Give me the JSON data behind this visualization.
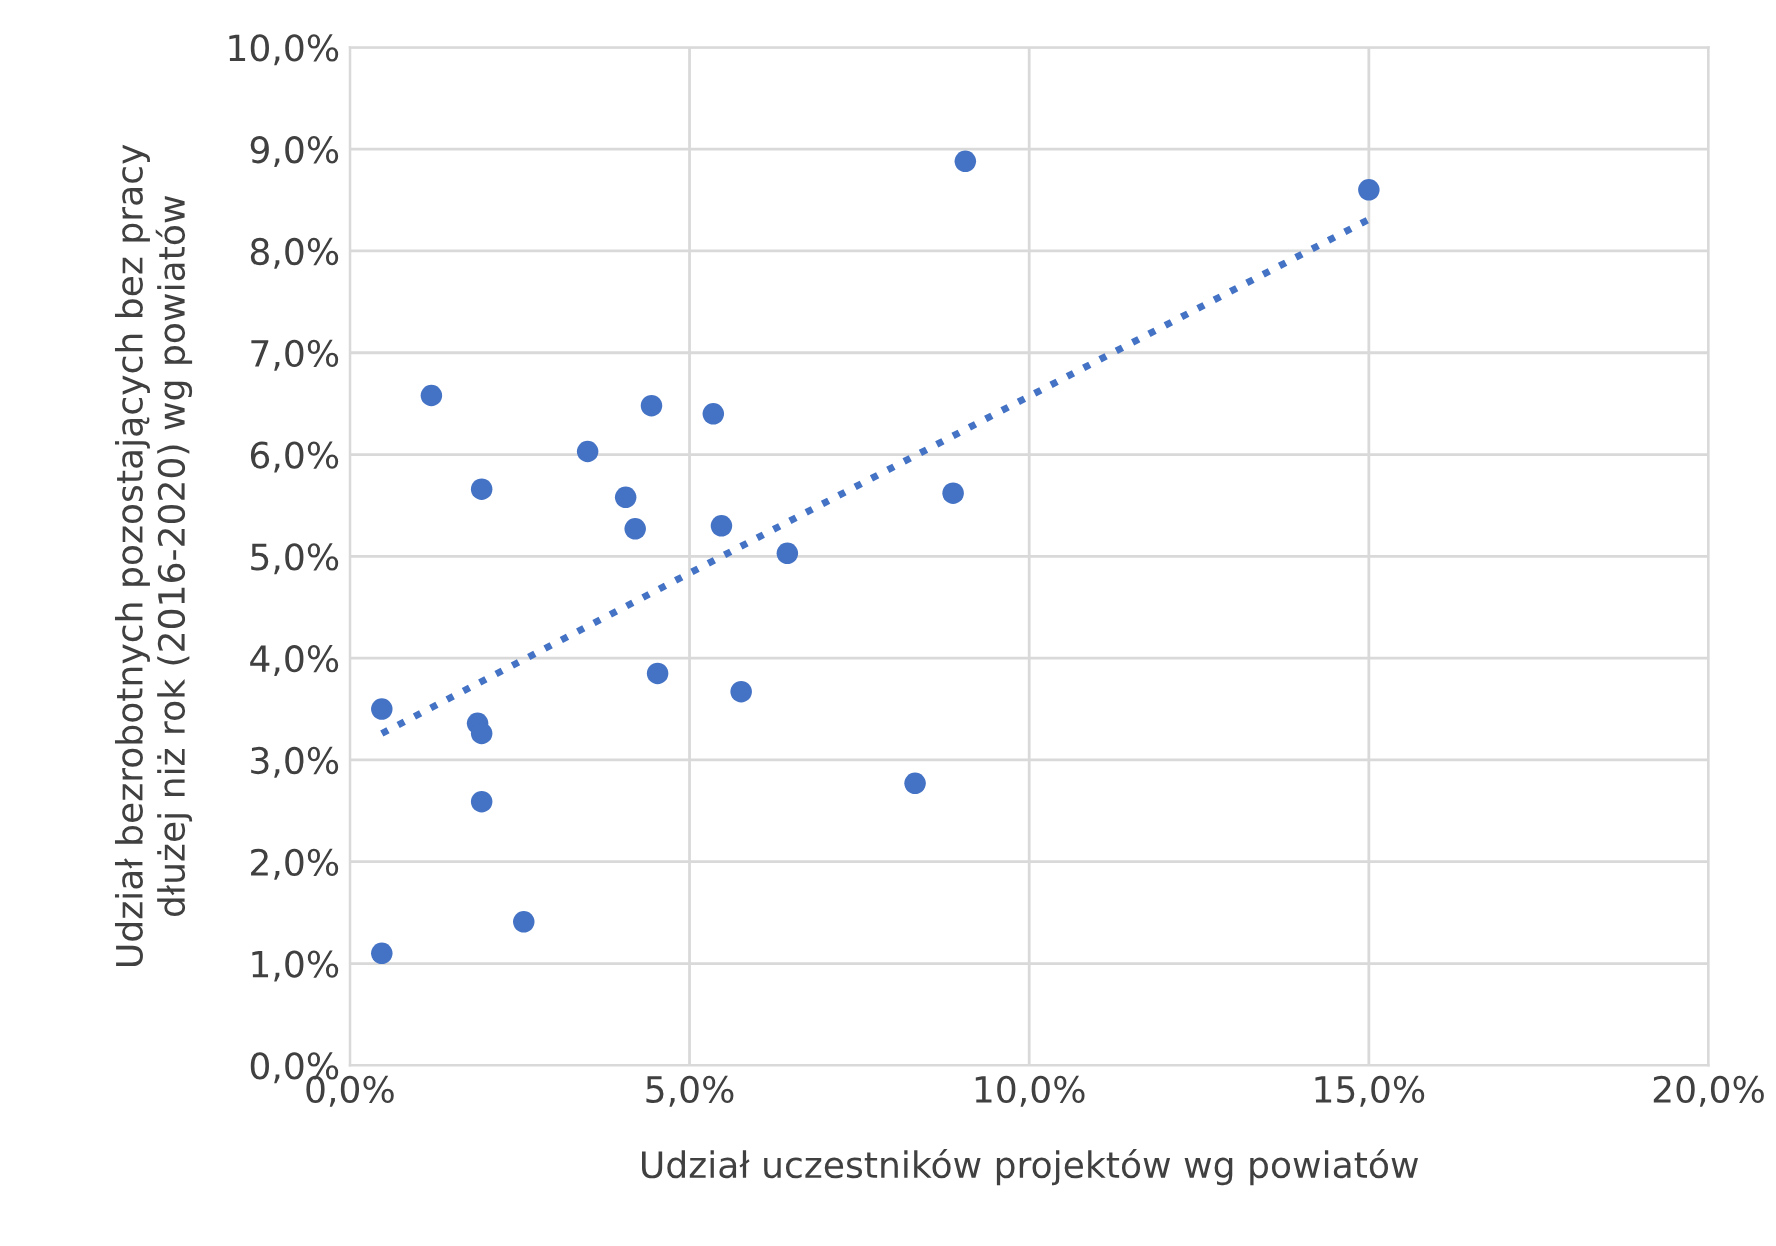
{
  "chart_data": {
    "type": "scatter",
    "xlabel": "Udział uczestników projektów wg powiatów",
    "ylabel": "Udział bezrobotnych pozostających bez pracy\ndłużej niż rok (2016-2020) wg powiatów",
    "series": [
      {
        "color": "#4472c4",
        "marker": "circle",
        "x": [
          15.0,
          9.06,
          1.2,
          4.44,
          5.35,
          3.5,
          1.94,
          4.06,
          4.2,
          5.47,
          8.88,
          6.44,
          4.53,
          5.76,
          0.47,
          1.88,
          1.94,
          1.94,
          8.32,
          2.56,
          0.47
        ],
        "values": [
          8.6,
          8.88,
          6.58,
          6.48,
          6.4,
          6.03,
          5.66,
          5.58,
          5.27,
          5.3,
          5.62,
          5.03,
          3.85,
          3.67,
          3.5,
          3.36,
          3.26,
          2.59,
          2.77,
          1.41,
          1.1
        ]
      },
      {
        "type": "line",
        "color": "#4472c4",
        "line_style": "dotted",
        "x": [
          0.47,
          15.0
        ],
        "values": [
          3.26,
          8.31
        ]
      }
    ],
    "xlim": [
      0,
      20
    ],
    "xticks": [
      {
        "value": 0,
        "label": "0,0%"
      },
      {
        "value": 5,
        "label": "5,0%"
      },
      {
        "value": 10,
        "label": "10,0%"
      },
      {
        "value": 15,
        "label": "15,0%"
      },
      {
        "value": 20,
        "label": "20,0%"
      }
    ],
    "ylim": [
      0,
      10
    ],
    "yticks": [
      {
        "value": 0,
        "label": "0,0%"
      },
      {
        "value": 1,
        "label": "1,0%"
      },
      {
        "value": 2,
        "label": "2,0%"
      },
      {
        "value": 3,
        "label": "3,0%"
      },
      {
        "value": 4,
        "label": "4,0%"
      },
      {
        "value": 5,
        "label": "5,0%"
      },
      {
        "value": 6,
        "label": "6,0%"
      },
      {
        "value": 7,
        "label": "7,0%"
      },
      {
        "value": 8,
        "label": "8,0%"
      },
      {
        "value": 9,
        "label": "9,0%"
      },
      {
        "value": 10,
        "label": "10,0%"
      }
    ],
    "grid": true
  }
}
